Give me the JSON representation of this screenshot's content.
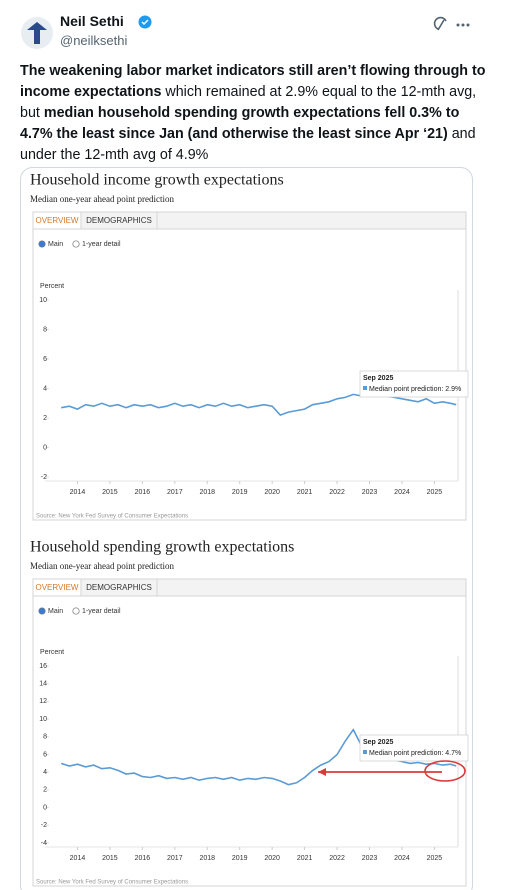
{
  "tweet": {
    "name": "Neil Sethi",
    "handle": "@neilksethi",
    "text": [
      {
        "text": "The weakening labor market indicators still aren’t flowing through to income expectations",
        "bold": true
      },
      {
        "text": " which remained at 2.9% equal to the 12-mth avg, but ",
        "bold": false
      },
      {
        "text": "median household spending growth expectations fell 0.3% to 4.7% the least since Jan (and otherwise the least since Apr ‘21)",
        "bold": true
      },
      {
        "text": " and under the 12-mth avg of 4.9%",
        "bold": false
      }
    ]
  },
  "chart_data": [
    {
      "type": "line",
      "title": "Household income growth expectations",
      "subtitle": "Median one-year ahead point prediction",
      "tabs": [
        "OVERVIEW",
        "DEMOGRAPHICS"
      ],
      "options": [
        "Main",
        "1-year detail"
      ],
      "y_label": "Percent",
      "source": "Source: New York Fed Survey of Consumer Expectations",
      "tooltip": {
        "date": "Sep 2025",
        "text": "Median point prediction: 2.9%"
      },
      "color": "#5b9bd5",
      "x": [
        2013.5,
        2013.75,
        2014,
        2014.25,
        2014.5,
        2014.75,
        2015,
        2015.25,
        2015.5,
        2015.75,
        2016,
        2016.25,
        2016.5,
        2016.75,
        2017,
        2017.25,
        2017.5,
        2017.75,
        2018,
        2018.25,
        2018.5,
        2018.75,
        2019,
        2019.25,
        2019.5,
        2019.75,
        2020,
        2020.25,
        2020.5,
        2020.75,
        2021,
        2021.25,
        2021.5,
        2021.75,
        2022,
        2022.25,
        2022.5,
        2022.75,
        2023,
        2023.25,
        2023.5,
        2023.75,
        2024,
        2024.25,
        2024.5,
        2024.75,
        2025,
        2025.25,
        2025.5,
        2025.67
      ],
      "values": [
        2.7,
        2.8,
        2.6,
        2.9,
        2.8,
        3.0,
        2.8,
        2.9,
        2.7,
        2.9,
        2.8,
        2.9,
        2.7,
        2.8,
        3.0,
        2.8,
        2.9,
        2.7,
        2.9,
        2.8,
        3.0,
        2.8,
        2.9,
        2.7,
        2.8,
        2.9,
        2.8,
        2.2,
        2.4,
        2.5,
        2.6,
        2.9,
        3.0,
        3.1,
        3.3,
        3.4,
        3.6,
        3.5,
        3.8,
        3.7,
        3.5,
        3.4,
        3.3,
        3.2,
        3.1,
        3.3,
        3.0,
        3.1,
        3.0,
        2.9
      ],
      "xlim": [
        2013,
        2025.85
      ],
      "xticks": [
        2014,
        2015,
        2016,
        2017,
        2018,
        2019,
        2020,
        2021,
        2022,
        2023,
        2024,
        2025
      ],
      "ylim": [
        -2,
        10
      ],
      "yticks": [
        -2,
        0,
        2,
        4,
        6,
        8,
        10
      ]
    },
    {
      "type": "line",
      "title": "Household spending growth expectations",
      "subtitle": "Median one-year ahead point prediction",
      "tabs": [
        "OVERVIEW",
        "DEMOGRAPHICS"
      ],
      "options": [
        "Main",
        "1-year detail"
      ],
      "y_label": "Percent",
      "source": "Source: New York Fed Survey of Consumer Expectations",
      "tooltip": {
        "date": "Sep 2025",
        "text": "Median point prediction: 4.7%"
      },
      "color": "#5b9bd5",
      "x": [
        2013.5,
        2013.75,
        2014,
        2014.25,
        2014.5,
        2014.75,
        2015,
        2015.25,
        2015.5,
        2015.75,
        2016,
        2016.25,
        2016.5,
        2016.75,
        2017,
        2017.25,
        2017.5,
        2017.75,
        2018,
        2018.25,
        2018.5,
        2018.75,
        2019,
        2019.25,
        2019.5,
        2019.75,
        2020,
        2020.25,
        2020.5,
        2020.75,
        2021,
        2021.25,
        2021.5,
        2021.75,
        2022,
        2022.25,
        2022.5,
        2022.75,
        2023,
        2023.25,
        2023.5,
        2023.75,
        2024,
        2024.25,
        2024.5,
        2024.75,
        2025,
        2025.25,
        2025.5,
        2025.67
      ],
      "values": [
        5.0,
        4.7,
        4.9,
        4.6,
        4.8,
        4.4,
        4.5,
        4.2,
        3.8,
        3.9,
        3.5,
        3.4,
        3.6,
        3.3,
        3.4,
        3.2,
        3.4,
        3.1,
        3.3,
        3.4,
        3.2,
        3.4,
        3.1,
        3.3,
        3.2,
        3.4,
        3.3,
        3.0,
        2.6,
        2.8,
        3.4,
        4.2,
        4.8,
        5.2,
        6.0,
        7.5,
        8.8,
        7.0,
        7.6,
        6.5,
        6.0,
        5.4,
        5.2,
        5.0,
        5.1,
        4.9,
        5.0,
        4.8,
        4.9,
        4.7
      ],
      "xlim": [
        2013,
        2025.85
      ],
      "xticks": [
        2014,
        2015,
        2016,
        2017,
        2018,
        2019,
        2020,
        2021,
        2022,
        2023,
        2024,
        2025
      ],
      "ylim": [
        -4,
        16
      ],
      "yticks": [
        -4,
        -2,
        0,
        2,
        4,
        6,
        8,
        10,
        12,
        14,
        16
      ]
    }
  ]
}
